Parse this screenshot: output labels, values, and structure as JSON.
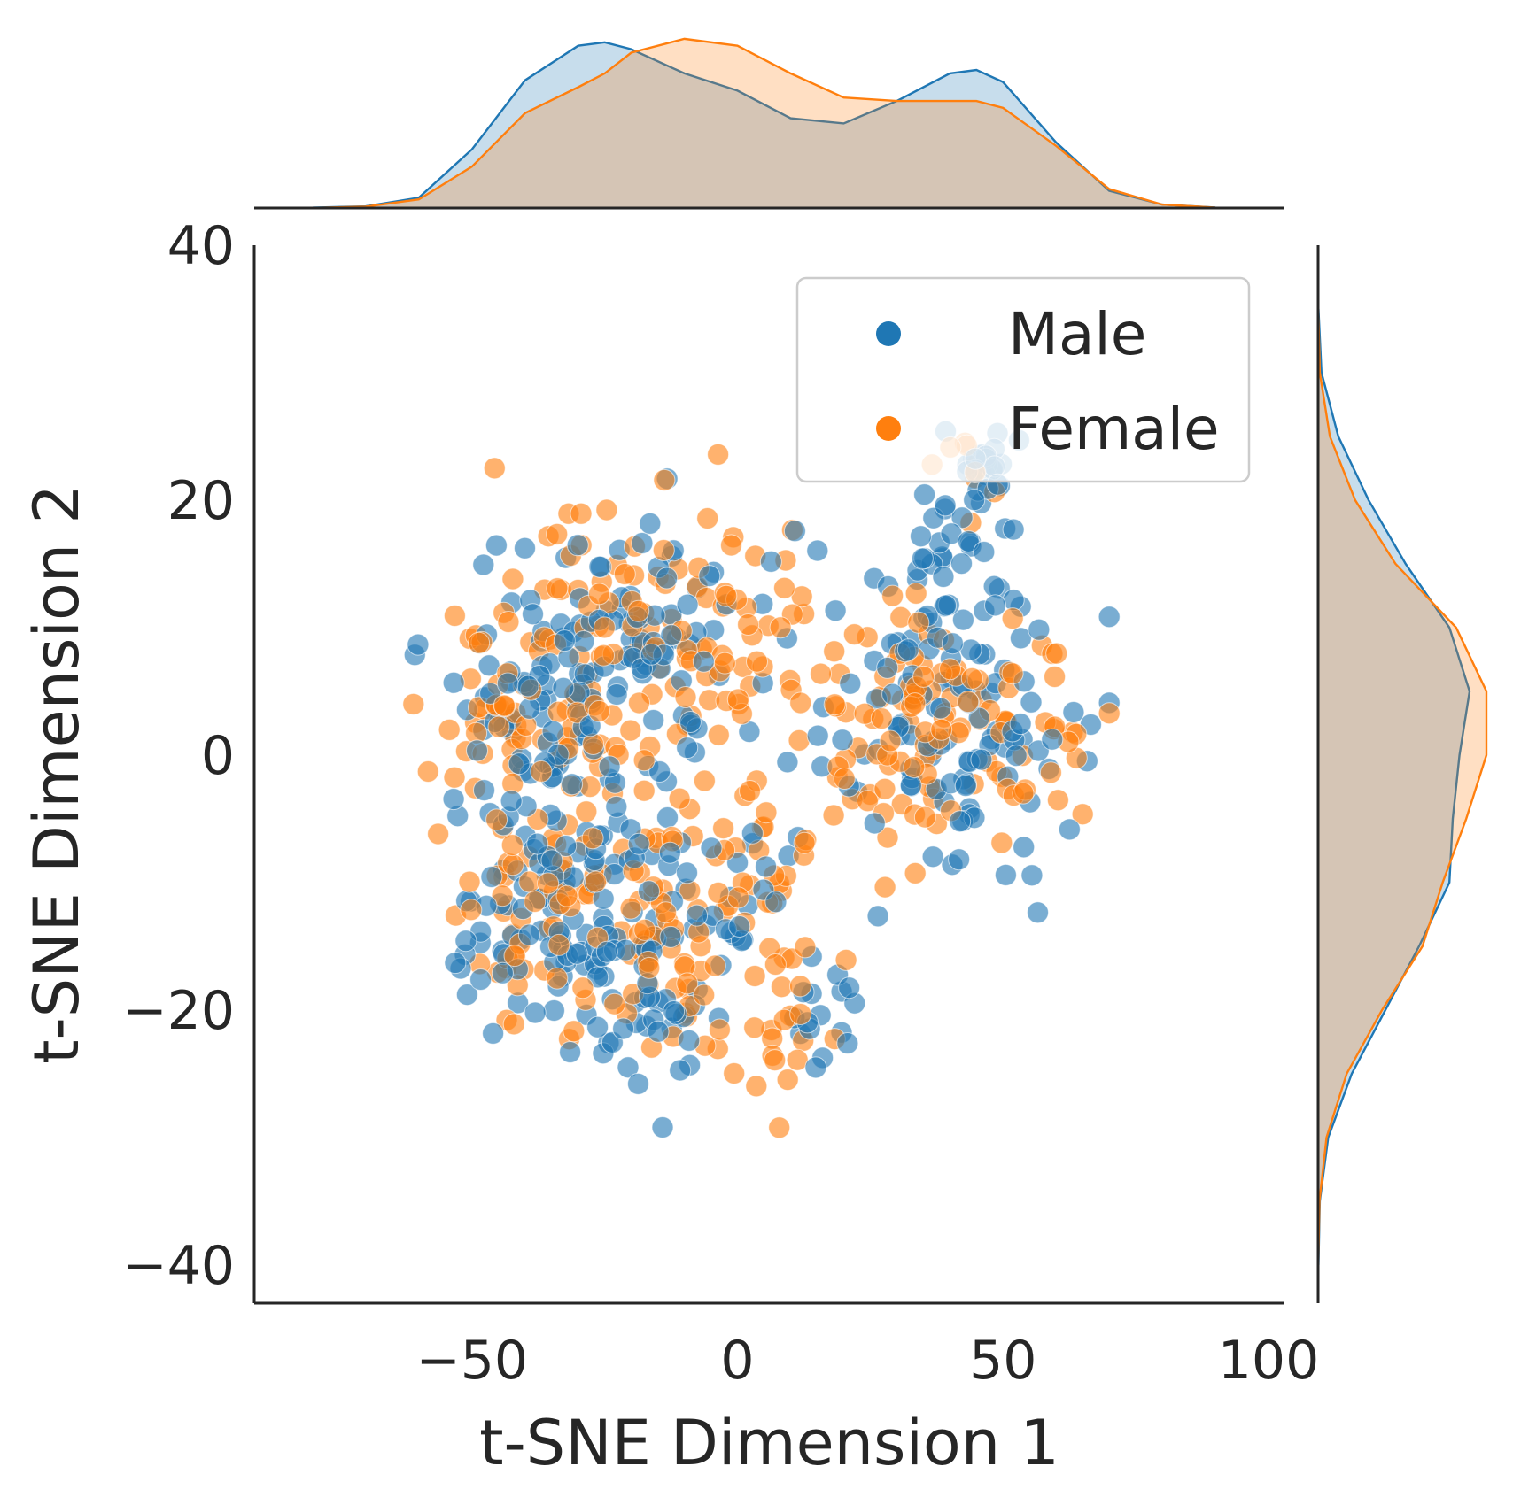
{
  "chart_data": {
    "type": "scatter",
    "subtype": "jointplot-with-kde-marginals",
    "xlabel": "t-SNE Dimension 1",
    "ylabel": "t-SNE Dimension 2",
    "xlim": [
      -91,
      103
    ],
    "ylim": [
      -43,
      40
    ],
    "xticks": [
      -50,
      0,
      50,
      100
    ],
    "xtick_labels": [
      "−50",
      "0",
      "50",
      "100"
    ],
    "yticks": [
      -40,
      -20,
      0,
      20,
      40
    ],
    "ytick_labels": [
      "−40",
      "−20",
      "0",
      "20",
      "40"
    ],
    "grid": false,
    "legend_position": "top-right",
    "marker_alpha": 0.6,
    "series": [
      {
        "name": "Male",
        "color": "#1f77b4",
        "clusters": [
          {
            "cx": -38,
            "cy": 5,
            "sx": 10,
            "sy": 6,
            "n": 70
          },
          {
            "cx": -22,
            "cy": 10,
            "sx": 9,
            "sy": 5,
            "n": 40
          },
          {
            "cx": -30,
            "cy": -3,
            "sx": 11,
            "sy": 6,
            "n": 55
          },
          {
            "cx": -40,
            "cy": -13,
            "sx": 8,
            "sy": 4,
            "n": 40
          },
          {
            "cx": -22,
            "cy": -15,
            "sx": 9,
            "sy": 5,
            "n": 55
          },
          {
            "cx": -15,
            "cy": -22,
            "sx": 6,
            "sy": 3,
            "n": 20
          },
          {
            "cx": -2,
            "cy": -11,
            "sx": 6,
            "sy": 3,
            "n": 25
          },
          {
            "cx": -5,
            "cy": 8,
            "sx": 8,
            "sy": 5,
            "n": 30
          },
          {
            "cx": 15,
            "cy": -20,
            "sx": 4,
            "sy": 3,
            "n": 16
          },
          {
            "cx": 40,
            "cy": 2,
            "sx": 13,
            "sy": 6,
            "n": 115
          },
          {
            "cx": 38,
            "cy": 17,
            "sx": 6,
            "sy": 3,
            "n": 30
          },
          {
            "cx": 47,
            "cy": 23,
            "sx": 3,
            "sy": 1.4,
            "n": 24
          }
        ]
      },
      {
        "name": "Female",
        "color": "#ff7f0e",
        "clusters": [
          {
            "cx": -38,
            "cy": 5,
            "sx": 10,
            "sy": 6,
            "n": 60
          },
          {
            "cx": -18,
            "cy": 12,
            "sx": 8,
            "sy": 5,
            "n": 45
          },
          {
            "cx": -25,
            "cy": -3,
            "sx": 12,
            "sy": 6,
            "n": 55
          },
          {
            "cx": -40,
            "cy": -13,
            "sx": 8,
            "sy": 4,
            "n": 35
          },
          {
            "cx": -15,
            "cy": -15,
            "sx": 10,
            "sy": 5,
            "n": 55
          },
          {
            "cx": 0,
            "cy": 12,
            "sx": 6,
            "sy": 6,
            "n": 30
          },
          {
            "cx": 3,
            "cy": -12,
            "sx": 8,
            "sy": 6,
            "n": 35
          },
          {
            "cx": 10,
            "cy": -22,
            "sx": 6,
            "sy": 3,
            "n": 18
          },
          {
            "cx": 35,
            "cy": 2,
            "sx": 14,
            "sy": 5,
            "n": 125
          },
          {
            "cx": 45,
            "cy": 22,
            "sx": 4,
            "sy": 1.5,
            "n": 10
          }
        ]
      }
    ],
    "marginal_x_kde": {
      "x": [
        -80,
        -70,
        -60,
        -50,
        -40,
        -30,
        -25,
        -20,
        -10,
        0,
        10,
        20,
        30,
        40,
        45,
        50,
        60,
        70,
        80,
        90
      ],
      "series": [
        {
          "name": "Male",
          "values": [
            0.002,
            0.01,
            0.06,
            0.34,
            0.74,
            0.94,
            0.96,
            0.92,
            0.78,
            0.68,
            0.52,
            0.49,
            0.62,
            0.78,
            0.8,
            0.73,
            0.38,
            0.1,
            0.02,
            0.003
          ]
        },
        {
          "name": "Female",
          "values": [
            0.001,
            0.008,
            0.05,
            0.24,
            0.55,
            0.7,
            0.78,
            0.9,
            0.98,
            0.94,
            0.78,
            0.64,
            0.62,
            0.62,
            0.62,
            0.58,
            0.36,
            0.11,
            0.02,
            0.002
          ]
        }
      ]
    },
    "marginal_y_kde": {
      "y": [
        -40,
        -35,
        -30,
        -25,
        -20,
        -15,
        -10,
        -5,
        0,
        5,
        10,
        15,
        20,
        25,
        30,
        35
      ],
      "series": [
        {
          "name": "Male",
          "values": [
            0.002,
            0.01,
            0.06,
            0.2,
            0.4,
            0.6,
            0.78,
            0.8,
            0.84,
            0.9,
            0.78,
            0.52,
            0.3,
            0.12,
            0.02,
            0.002
          ]
        },
        {
          "name": "Female",
          "values": [
            0.001,
            0.008,
            0.05,
            0.17,
            0.38,
            0.62,
            0.74,
            0.88,
            1.0,
            1.0,
            0.82,
            0.46,
            0.22,
            0.07,
            0.01,
            0.001
          ]
        }
      ]
    }
  }
}
